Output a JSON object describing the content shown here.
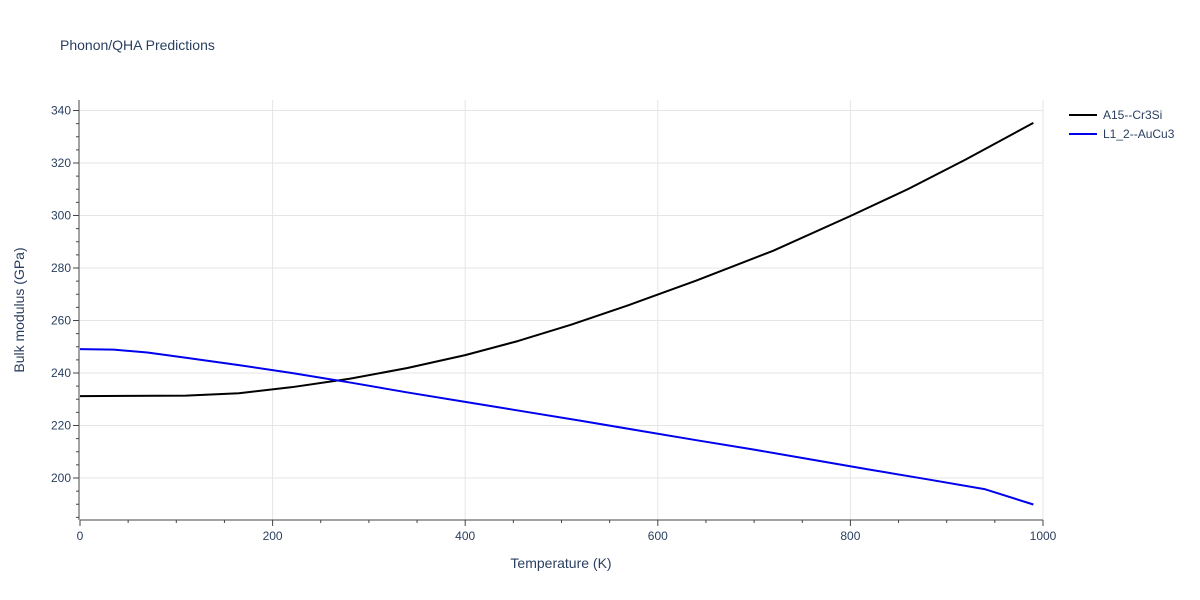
{
  "chart_data": {
    "type": "line",
    "title": "Phonon/QHA Predictions",
    "xlabel": "Temperature (K)",
    "ylabel": "Bulk modulus (GPa)",
    "xlim": [
      0,
      1000
    ],
    "ylim": [
      184,
      344
    ],
    "xticks": [
      0,
      200,
      400,
      600,
      800,
      1000
    ],
    "yticks": [
      200,
      220,
      240,
      260,
      280,
      300,
      320,
      340
    ],
    "grid": true,
    "legend_position": "top-right",
    "series": [
      {
        "name": "A15--Cr3Si",
        "color": "#000000",
        "x": [
          0,
          50,
          110,
          165,
          220,
          280,
          340,
          400,
          455,
          510,
          570,
          640,
          720,
          800,
          860,
          920,
          990
        ],
        "y": [
          231.2,
          231.3,
          231.4,
          232.3,
          234.6,
          237.8,
          241.9,
          246.8,
          252.2,
          258.4,
          265.9,
          275.2,
          286.6,
          299.8,
          310.1,
          321.4,
          335.3
        ]
      },
      {
        "name": "L1_2--AuCu3",
        "color": "#0000ee",
        "x": [
          0,
          35,
          70,
          110,
          165,
          220,
          280,
          340,
          400,
          460,
          520,
          580,
          640,
          700,
          760,
          820,
          880,
          940,
          990
        ],
        "y": [
          249.1,
          248.9,
          247.8,
          245.8,
          243.0,
          240.0,
          236.4,
          232.6,
          229.0,
          225.4,
          221.8,
          218.1,
          214.4,
          210.8,
          207.0,
          203.2,
          199.5,
          195.7,
          189.9
        ]
      }
    ]
  }
}
